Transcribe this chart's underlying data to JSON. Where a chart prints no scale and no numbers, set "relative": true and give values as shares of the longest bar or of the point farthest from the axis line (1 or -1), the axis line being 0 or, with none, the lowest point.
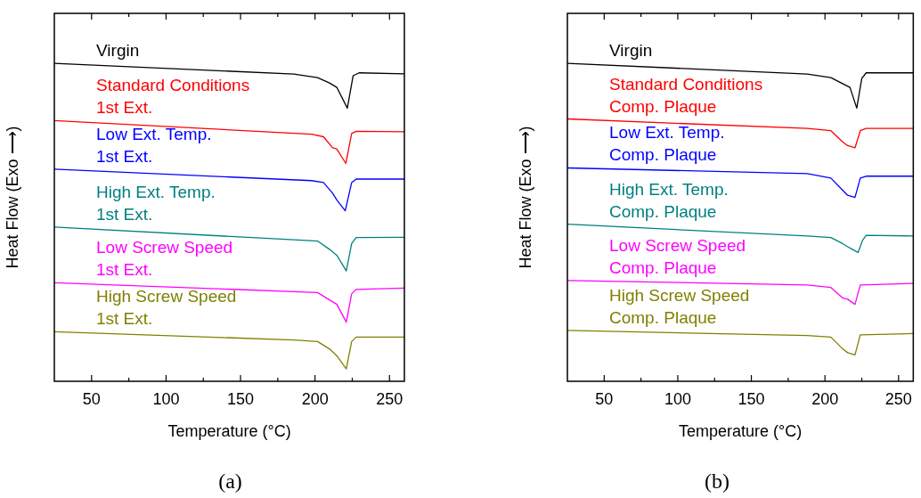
{
  "chart_data": [
    {
      "type": "line",
      "relative": true,
      "xlabel": "Temperature (°C)",
      "ylabel": "Heat Flow (Exo ⟶)",
      "tick_labels": "x",
      "xlim": [
        25,
        260
      ],
      "xticks": [
        50,
        {
          "value": 75,
          "label": null
        },
        100,
        {
          "value": 125,
          "label": null
        },
        150,
        {
          "value": 175,
          "label": null
        },
        200,
        {
          "value": 225,
          "label": null
        },
        250
      ],
      "annotations": [
        "(a)"
      ],
      "series": [
        {
          "name": "Virgin",
          "color": "#000000",
          "x": [
            25,
            185.8,
            201.7,
            209.7,
            214.7,
            221.7,
            225.6,
            229.6,
            260
          ],
          "values": [
            1.0,
            0.966,
            0.955,
            0.938,
            0.924,
            0.859,
            0.961,
            0.97,
            0.967
          ]
        },
        {
          "name": "Standard Conditions\n1st Ext.",
          "color": "#ff0000",
          "x": [
            25,
            197.7,
            205.7,
            211.7,
            214.7,
            220.7,
            224.6,
            227.6,
            260
          ],
          "values": [
            0.82,
            0.777,
            0.769,
            0.735,
            0.73,
            0.685,
            0.779,
            0.786,
            0.785
          ]
        },
        {
          "name": "Low Ext. Temp.\n1st Ext.",
          "color": "#0000ff",
          "x": [
            25,
            197.7,
            205.7,
            211.7,
            214.7,
            220.3,
            224.6,
            227.6,
            260
          ],
          "values": [
            0.667,
            0.631,
            0.625,
            0.592,
            0.57,
            0.536,
            0.625,
            0.636,
            0.636
          ]
        },
        {
          "name": "High Ext. Temp.\n1st Ext.",
          "color": "#008080",
          "x": [
            25,
            185.8,
            201.7,
            209.7,
            214.7,
            221,
            224.6,
            227.6,
            260
          ],
          "values": [
            0.485,
            0.445,
            0.441,
            0.415,
            0.396,
            0.347,
            0.433,
            0.452,
            0.453
          ]
        },
        {
          "name": "Low Screw Speed\n1st Ext.",
          "color": "#ff00ff",
          "x": [
            25,
            185.8,
            201.7,
            209.7,
            214.7,
            221,
            224.6,
            227.6,
            260
          ],
          "values": [
            0.31,
            0.282,
            0.279,
            0.256,
            0.242,
            0.186,
            0.275,
            0.289,
            0.293
          ]
        },
        {
          "name": "High Screw Speed\n1st Ext.",
          "color": "#808000",
          "x": [
            25,
            185.8,
            201.7,
            209.7,
            214.7,
            221,
            224.6,
            227.6,
            260
          ],
          "values": [
            0.156,
            0.13,
            0.125,
            0.102,
            0.08,
            0.039,
            0.125,
            0.139,
            0.139
          ]
        }
      ]
    },
    {
      "type": "line",
      "relative": true,
      "xlabel": "Temperature (°C)",
      "ylabel": "Heat Flow (Exo ⟶)",
      "tick_labels": "x",
      "xlim": [
        25,
        260
      ],
      "xticks": [
        50,
        {
          "value": 75,
          "label": null
        },
        100,
        {
          "value": 125,
          "label": null
        },
        150,
        {
          "value": 175,
          "label": null
        },
        200,
        {
          "value": 225,
          "label": null
        },
        250
      ],
      "annotations": [
        "(b)"
      ],
      "series": [
        {
          "name": "Virgin",
          "color": "#000000",
          "x": [
            25,
            188,
            204,
            212,
            217,
            221.6,
            225,
            228,
            260
          ],
          "values": [
            1.0,
            0.966,
            0.955,
            0.936,
            0.924,
            0.859,
            0.952,
            0.97,
            0.97
          ]
        },
        {
          "name": "Standard Conditions\nComp. Plaque",
          "color": "#ff0000",
          "x": [
            25,
            188,
            204,
            212,
            215.4,
            220.4,
            224,
            228,
            260
          ],
          "values": [
            0.825,
            0.795,
            0.788,
            0.753,
            0.741,
            0.734,
            0.788,
            0.795,
            0.795
          ]
        },
        {
          "name": "Low Ext. Temp.\nComp. Plaque",
          "color": "#0000ff",
          "x": [
            25,
            188,
            204,
            212,
            215.4,
            220.4,
            224,
            228,
            260
          ],
          "values": [
            0.671,
            0.653,
            0.639,
            0.601,
            0.585,
            0.578,
            0.639,
            0.645,
            0.645
          ]
        },
        {
          "name": "High Ext. Temp.\nComp. Plaque",
          "color": "#008080",
          "x": [
            25,
            188,
            204,
            212,
            217,
            222.5,
            225.5,
            228,
            260
          ],
          "values": [
            0.494,
            0.457,
            0.452,
            0.433,
            0.419,
            0.405,
            0.443,
            0.459,
            0.457
          ]
        },
        {
          "name": "Low Screw Speed\nComp. Plaque",
          "color": "#ff00ff",
          "x": [
            25,
            188,
            204,
            212,
            215.4,
            220.4,
            224,
            260
          ],
          "values": [
            0.317,
            0.303,
            0.295,
            0.262,
            0.258,
            0.242,
            0.303,
            0.308
          ]
        },
        {
          "name": "High Screw Speed\nComp. Plaque",
          "color": "#808000",
          "x": [
            25,
            188,
            204,
            212,
            215.4,
            220.4,
            224,
            260
          ],
          "values": [
            0.16,
            0.144,
            0.139,
            0.102,
            0.09,
            0.083,
            0.146,
            0.15
          ]
        }
      ]
    }
  ]
}
